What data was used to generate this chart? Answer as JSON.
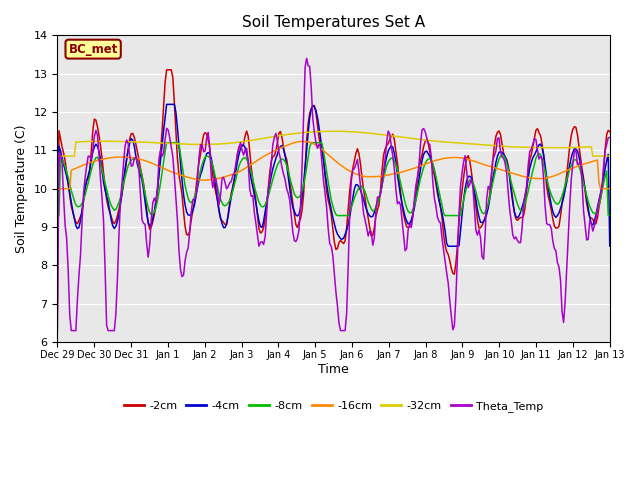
{
  "title": "Soil Temperatures Set A",
  "xlabel": "Time",
  "ylabel": "Soil Temperature (C)",
  "ylim": [
    6.0,
    14.0
  ],
  "yticks": [
    6.0,
    7.0,
    8.0,
    9.0,
    10.0,
    11.0,
    12.0,
    13.0,
    14.0
  ],
  "bg_color": "#e8e8e8",
  "annotation_text": "BC_met",
  "annotation_bg": "#ffff99",
  "annotation_border": "#8b0000",
  "series_colors": {
    "-2cm": "#cc0000",
    "-4cm": "#0000cc",
    "-8cm": "#00bb00",
    "-16cm": "#ff8800",
    "-32cm": "#ddcc00",
    "Theta_Temp": "#aa00cc"
  },
  "xtick_labels": [
    "Dec 29",
    "Dec 30",
    "Dec 31",
    "Jan 1",
    "Jan 2",
    "Jan 3",
    "Jan 4",
    "Jan 5",
    "Jan 6",
    "Jan 7",
    "Jan 8",
    "Jan 9",
    "Jan 10",
    "Jan 11",
    "Jan 12",
    "Jan 13"
  ],
  "n_points": 360,
  "total_days": 15
}
